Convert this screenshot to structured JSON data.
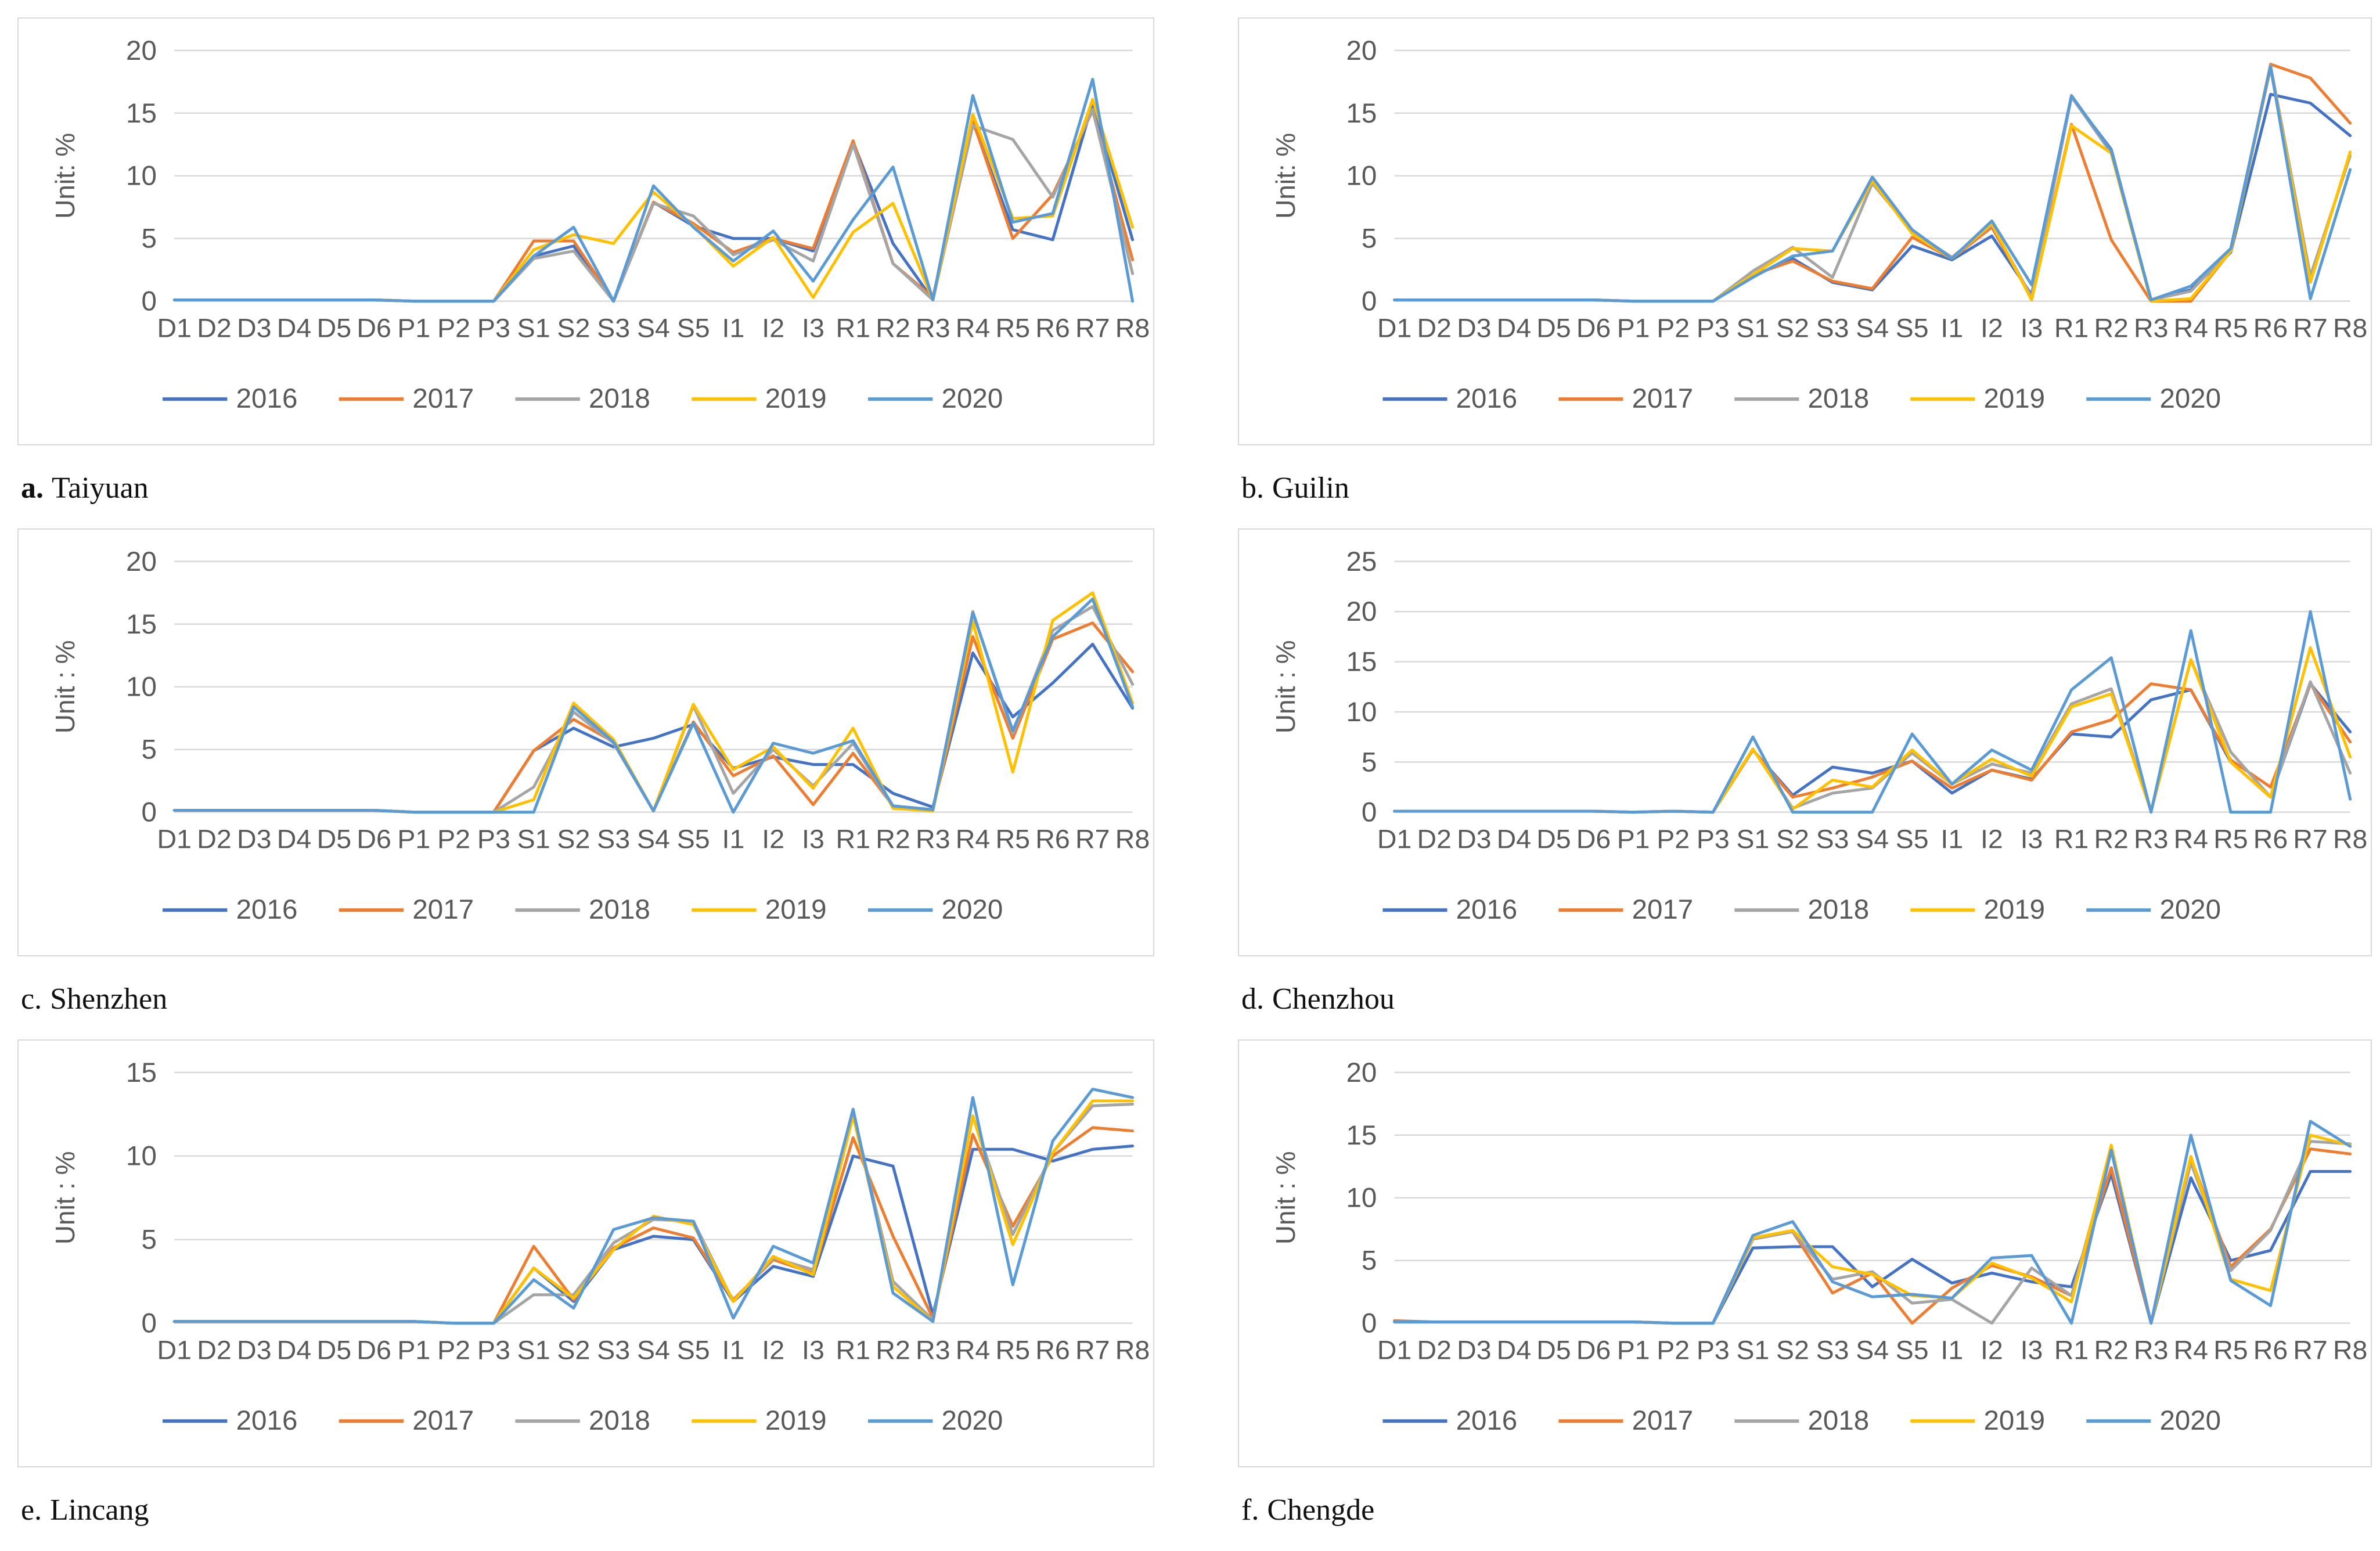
{
  "page": {
    "background": "#ffffff"
  },
  "legend": {
    "position": "bottom",
    "labels": [
      "2016",
      "2017",
      "2018",
      "2019",
      "2020"
    ]
  },
  "palette": {
    "2016": "#4472C4",
    "2017": "#ED7D31",
    "2018": "#A5A5A5",
    "2019": "#FFC000",
    "2020": "#5B9BD5"
  },
  "categories": [
    "D1",
    "D2",
    "D3",
    "D4",
    "D5",
    "D6",
    "P1",
    "P2",
    "P3",
    "S1",
    "S2",
    "S3",
    "S4",
    "S5",
    "I1",
    "I2",
    "I3",
    "R1",
    "R2",
    "R3",
    "R4",
    "R5",
    "R6",
    "R7",
    "R8"
  ],
  "chart_data": [
    {
      "type": "line",
      "title": "",
      "xlabel": "",
      "ylabel": "Unit: %",
      "ymax": 20,
      "yticks": [
        0,
        5,
        10,
        15,
        20
      ],
      "grid": true,
      "legend_position": "bottom",
      "caption": {
        "prefix": "a.",
        "name": "Taiyuan",
        "bold": true
      },
      "series": [
        {
          "name": "2016",
          "color": "#4472C4",
          "values": [
            0.1,
            0.1,
            0.1,
            0.1,
            0.1,
            0.1,
            0,
            0,
            0,
            3.6,
            4.4,
            0,
            7.9,
            6.0,
            5.0,
            5.0,
            4.0,
            12.7,
            4.6,
            0.1,
            14.3,
            5.7,
            4.9,
            15.8,
            4.9
          ]
        },
        {
          "name": "2017",
          "color": "#ED7D31",
          "values": [
            0.1,
            0.1,
            0.1,
            0.1,
            0.1,
            0.1,
            0,
            0,
            0,
            4.8,
            4.8,
            0,
            7.9,
            6.2,
            3.9,
            5.0,
            4.2,
            12.8,
            3.0,
            0.3,
            14.4,
            5.0,
            8.5,
            15.2,
            3.3
          ]
        },
        {
          "name": "2018",
          "color": "#A5A5A5",
          "values": [
            0.1,
            0.1,
            0.1,
            0.1,
            0.1,
            0.1,
            0,
            0,
            0,
            3.4,
            4.0,
            0,
            7.8,
            6.8,
            3.7,
            4.9,
            3.2,
            12.5,
            3.0,
            0.1,
            14.0,
            12.9,
            8.3,
            15.3,
            2.2
          ]
        },
        {
          "name": "2019",
          "color": "#FFC000",
          "values": [
            0.1,
            0.1,
            0.1,
            0.1,
            0.1,
            0.1,
            0,
            0,
            0,
            4.1,
            5.3,
            4.6,
            8.7,
            6.0,
            2.8,
            5.1,
            0.3,
            5.5,
            7.8,
            0.1,
            14.9,
            6.6,
            6.8,
            16.1,
            5.9
          ]
        },
        {
          "name": "2020",
          "color": "#5B9BD5",
          "values": [
            0.1,
            0.1,
            0.1,
            0.1,
            0.1,
            0.1,
            0,
            0,
            0,
            3.6,
            5.9,
            0,
            9.2,
            5.9,
            3.2,
            5.6,
            1.6,
            6.5,
            10.7,
            0.1,
            16.4,
            6.3,
            7.0,
            17.7,
            0
          ]
        }
      ]
    },
    {
      "type": "line",
      "title": "",
      "xlabel": "",
      "ylabel": "Unit: %",
      "ymax": 20,
      "yticks": [
        0,
        5,
        10,
        15,
        20
      ],
      "grid": true,
      "legend_position": "bottom",
      "caption": {
        "prefix": "b.",
        "name": "Guilin",
        "bold": false
      },
      "series": [
        {
          "name": "2016",
          "color": "#4472C4",
          "values": [
            0.1,
            0.1,
            0.1,
            0.1,
            0.1,
            0.1,
            0,
            0,
            0,
            2.0,
            3.4,
            1.5,
            0.9,
            4.4,
            3.3,
            5.2,
            0.5,
            16.3,
            12.1,
            0.1,
            0.9,
            3.9,
            16.5,
            15.8,
            13.2
          ]
        },
        {
          "name": "2017",
          "color": "#ED7D31",
          "values": [
            0.1,
            0.1,
            0.1,
            0.1,
            0.1,
            0.1,
            0,
            0,
            0,
            2.1,
            3.2,
            1.6,
            1.0,
            5.1,
            3.4,
            5.9,
            0.3,
            14.1,
            4.9,
            0,
            0,
            4.0,
            18.9,
            17.8,
            14.2
          ]
        },
        {
          "name": "2018",
          "color": "#A5A5A5",
          "values": [
            0.1,
            0.1,
            0.1,
            0.1,
            0.1,
            0.1,
            0,
            0,
            0,
            2.4,
            4.3,
            1.9,
            9.4,
            5.6,
            3.5,
            6.1,
            0.3,
            16.3,
            11.8,
            0.1,
            0.8,
            4.1,
            18.8,
            2.0,
            11.6
          ]
        },
        {
          "name": "2019",
          "color": "#FFC000",
          "values": [
            0.1,
            0.1,
            0.1,
            0.1,
            0.1,
            0.1,
            0,
            0,
            0,
            2.1,
            4.2,
            4.0,
            9.6,
            5.4,
            3.4,
            6.2,
            0.1,
            14.0,
            11.8,
            0,
            0.2,
            4.0,
            18.6,
            1.5,
            11.9
          ]
        },
        {
          "name": "2020",
          "color": "#5B9BD5",
          "values": [
            0.1,
            0.1,
            0.1,
            0.1,
            0.1,
            0.1,
            0,
            0,
            0,
            1.9,
            3.6,
            4.0,
            9.9,
            5.7,
            3.4,
            6.4,
            1.3,
            16.4,
            12.0,
            0.1,
            1.2,
            4.2,
            18.7,
            0.2,
            10.5
          ]
        }
      ]
    },
    {
      "type": "line",
      "title": "",
      "xlabel": "",
      "ylabel": "Unit : %",
      "ymax": 20,
      "yticks": [
        0,
        5,
        10,
        15,
        20
      ],
      "grid": true,
      "legend_position": "bottom",
      "caption": {
        "prefix": "c.",
        "name": "Shenzhen",
        "bold": false
      },
      "series": [
        {
          "name": "2016",
          "color": "#4472C4",
          "values": [
            0.15,
            0.15,
            0.15,
            0.15,
            0.15,
            0.15,
            0,
            0,
            0,
            4.9,
            6.7,
            5.2,
            5.9,
            7.0,
            3.5,
            4.4,
            3.8,
            3.8,
            1.5,
            0.4,
            12.7,
            7.6,
            10.3,
            13.4,
            8.3
          ]
        },
        {
          "name": "2017",
          "color": "#ED7D31",
          "values": [
            0.15,
            0.15,
            0.15,
            0.15,
            0.15,
            0.15,
            0,
            0,
            0,
            4.9,
            7.4,
            5.6,
            0.1,
            7.2,
            2.9,
            4.5,
            0.6,
            4.7,
            0.5,
            0.2,
            14.0,
            5.9,
            13.8,
            15.1,
            11.2
          ]
        },
        {
          "name": "2018",
          "color": "#A5A5A5",
          "values": [
            0.15,
            0.15,
            0.15,
            0.15,
            0.15,
            0.15,
            0,
            0,
            0,
            2.0,
            8.0,
            5.5,
            0.1,
            8.5,
            1.5,
            5.0,
            2.1,
            5.5,
            0.4,
            0.2,
            16.0,
            6.3,
            14.5,
            16.4,
            10.2
          ]
        },
        {
          "name": "2019",
          "color": "#FFC000",
          "values": [
            0.15,
            0.15,
            0.15,
            0.15,
            0.15,
            0.15,
            0,
            0,
            0,
            1.0,
            8.7,
            5.8,
            0.1,
            8.6,
            3.4,
            5.2,
            1.9,
            6.7,
            0.3,
            0.1,
            15.2,
            3.2,
            15.3,
            17.5,
            8.7
          ]
        },
        {
          "name": "2020",
          "color": "#5B9BD5",
          "values": [
            0.15,
            0.15,
            0.15,
            0.15,
            0.15,
            0.15,
            0,
            0,
            0,
            0,
            8.4,
            5.6,
            0.1,
            7.1,
            0,
            5.5,
            4.7,
            5.7,
            0.5,
            0.2,
            15.9,
            6.5,
            14.0,
            17.0,
            8.4
          ]
        }
      ]
    },
    {
      "type": "line",
      "title": "",
      "xlabel": "",
      "ylabel": "Unit : %",
      "ymax": 25,
      "yticks": [
        0,
        5,
        10,
        15,
        20,
        25
      ],
      "grid": true,
      "legend_position": "bottom",
      "caption": {
        "prefix": "d.",
        "name": "Chenzhou",
        "bold": false
      },
      "series": [
        {
          "name": "2016",
          "color": "#4472C4",
          "values": [
            0.1,
            0.1,
            0.1,
            0.1,
            0.1,
            0.1,
            0,
            0.1,
            0,
            6.2,
            1.7,
            4.5,
            3.9,
            5.1,
            1.9,
            4.2,
            3.3,
            7.8,
            7.5,
            11.2,
            12.2,
            5.0,
            1.5,
            12.8,
            8.0
          ]
        },
        {
          "name": "2017",
          "color": "#ED7D31",
          "values": [
            0.1,
            0.1,
            0.1,
            0.1,
            0.1,
            0.1,
            0,
            0.1,
            0,
            6.2,
            1.5,
            2.4,
            3.5,
            5.1,
            2.4,
            4.2,
            3.2,
            8.0,
            9.2,
            12.8,
            12.2,
            5.2,
            2.5,
            12.8,
            7.0
          ]
        },
        {
          "name": "2018",
          "color": "#A5A5A5",
          "values": [
            0.1,
            0.1,
            0.1,
            0.1,
            0.1,
            0.1,
            0,
            0.1,
            0,
            6.3,
            0.4,
            1.9,
            2.4,
            5.9,
            2.8,
            4.8,
            3.9,
            10.8,
            12.3,
            0.1,
            15.2,
            6.0,
            1.5,
            13.0,
            3.9
          ]
        },
        {
          "name": "2019",
          "color": "#FFC000",
          "values": [
            0.1,
            0.1,
            0.1,
            0.1,
            0.1,
            0.1,
            0,
            0.1,
            0,
            6.3,
            0.3,
            3.2,
            2.5,
            6.2,
            2.8,
            5.3,
            3.6,
            10.5,
            11.8,
            0.1,
            15.2,
            5.0,
            1.5,
            16.4,
            5.5
          ]
        },
        {
          "name": "2020",
          "color": "#5B9BD5",
          "values": [
            0.1,
            0.1,
            0.1,
            0.1,
            0.1,
            0.1,
            0,
            0.1,
            0,
            7.5,
            0,
            0,
            0,
            7.8,
            2.8,
            6.2,
            4.2,
            12.2,
            15.4,
            0,
            18.1,
            0,
            0,
            20.0,
            1.3
          ]
        }
      ]
    },
    {
      "type": "line",
      "title": "",
      "xlabel": "",
      "ylabel": "Unit : %",
      "ymax": 15,
      "yticks": [
        0,
        5,
        10,
        15
      ],
      "grid": true,
      "legend_position": "bottom",
      "caption": {
        "prefix": "e.",
        "name": "Lincang",
        "bold": false
      },
      "series": [
        {
          "name": "2016",
          "color": "#4472C4",
          "values": [
            0.1,
            0.1,
            0.1,
            0.1,
            0.1,
            0.1,
            0.1,
            0,
            0,
            3.3,
            1.3,
            4.4,
            5.2,
            5.0,
            1.3,
            3.4,
            2.8,
            10.0,
            9.4,
            0.5,
            10.4,
            10.4,
            9.7,
            10.4,
            10.6
          ]
        },
        {
          "name": "2017",
          "color": "#ED7D31",
          "values": [
            0.1,
            0.1,
            0.1,
            0.1,
            0.1,
            0.1,
            0.1,
            0,
            0,
            4.6,
            1.4,
            4.5,
            5.7,
            5.1,
            1.4,
            3.8,
            3.0,
            11.1,
            5.2,
            0.3,
            11.3,
            5.8,
            10.0,
            11.7,
            11.5
          ]
        },
        {
          "name": "2018",
          "color": "#A5A5A5",
          "values": [
            0.1,
            0.1,
            0.1,
            0.1,
            0.1,
            0.1,
            0.1,
            0,
            0,
            1.7,
            1.7,
            4.8,
            6.2,
            6.1,
            1.3,
            3.9,
            3.2,
            12.6,
            2.5,
            0.2,
            12.4,
            5.3,
            10.2,
            13.0,
            13.1
          ]
        },
        {
          "name": "2019",
          "color": "#FFC000",
          "values": [
            0.1,
            0.1,
            0.1,
            0.1,
            0.1,
            0.1,
            0.1,
            0,
            0,
            3.3,
            1.5,
            4.4,
            6.4,
            5.9,
            1.3,
            4.0,
            2.9,
            12.4,
            2.2,
            0.1,
            12.4,
            4.7,
            10.2,
            13.3,
            13.3
          ]
        },
        {
          "name": "2020",
          "color": "#5B9BD5",
          "values": [
            0.1,
            0.1,
            0.1,
            0.1,
            0.1,
            0.1,
            0.1,
            0,
            0,
            2.6,
            0.9,
            5.6,
            6.3,
            6.1,
            0.3,
            4.6,
            3.6,
            12.8,
            1.8,
            0.1,
            13.5,
            2.3,
            10.9,
            14.0,
            13.5
          ]
        }
      ]
    },
    {
      "type": "line",
      "title": "",
      "xlabel": "",
      "ylabel": "Unit : %",
      "ymax": 20,
      "yticks": [
        0,
        5,
        10,
        15,
        20
      ],
      "grid": true,
      "legend_position": "bottom",
      "caption": {
        "prefix": "f.",
        "name": "Chengde",
        "bold": false
      },
      "series": [
        {
          "name": "2016",
          "color": "#4472C4",
          "values": [
            0.1,
            0.1,
            0.1,
            0.1,
            0.1,
            0.1,
            0.1,
            0,
            0,
            6.0,
            6.1,
            6.1,
            2.9,
            5.1,
            3.2,
            4.0,
            3.3,
            2.9,
            11.9,
            0,
            11.6,
            5.0,
            5.8,
            12.1,
            12.1
          ]
        },
        {
          "name": "2017",
          "color": "#ED7D31",
          "values": [
            0.2,
            0.1,
            0.1,
            0.1,
            0.1,
            0.1,
            0.1,
            0,
            0,
            6.7,
            7.3,
            2.4,
            4.0,
            0,
            2.8,
            4.6,
            3.7,
            2.2,
            12.4,
            0,
            13.2,
            4.5,
            7.5,
            13.9,
            13.5
          ]
        },
        {
          "name": "2018",
          "color": "#A5A5A5",
          "values": [
            0.1,
            0.1,
            0.1,
            0.1,
            0.1,
            0.1,
            0.1,
            0,
            0,
            6.7,
            7.3,
            3.5,
            4.1,
            1.6,
            1.9,
            0,
            4.4,
            2.2,
            13.8,
            0,
            12.8,
            4.2,
            7.4,
            14.5,
            14.3
          ]
        },
        {
          "name": "2019",
          "color": "#FFC000",
          "values": [
            0.1,
            0.1,
            0.1,
            0.1,
            0.1,
            0.1,
            0.1,
            0,
            0,
            6.8,
            7.4,
            4.5,
            3.9,
            2.2,
            2.0,
            4.8,
            3.6,
            1.7,
            14.2,
            0,
            13.3,
            3.5,
            2.6,
            15.0,
            14.2
          ]
        },
        {
          "name": "2020",
          "color": "#5B9BD5",
          "values": [
            0.1,
            0.1,
            0.1,
            0.1,
            0.1,
            0.1,
            0.1,
            0,
            0,
            7.0,
            8.1,
            3.3,
            2.1,
            2.3,
            2.0,
            5.2,
            5.4,
            0,
            13.8,
            0,
            15.0,
            3.4,
            1.4,
            16.1,
            14.1
          ]
        }
      ]
    }
  ]
}
